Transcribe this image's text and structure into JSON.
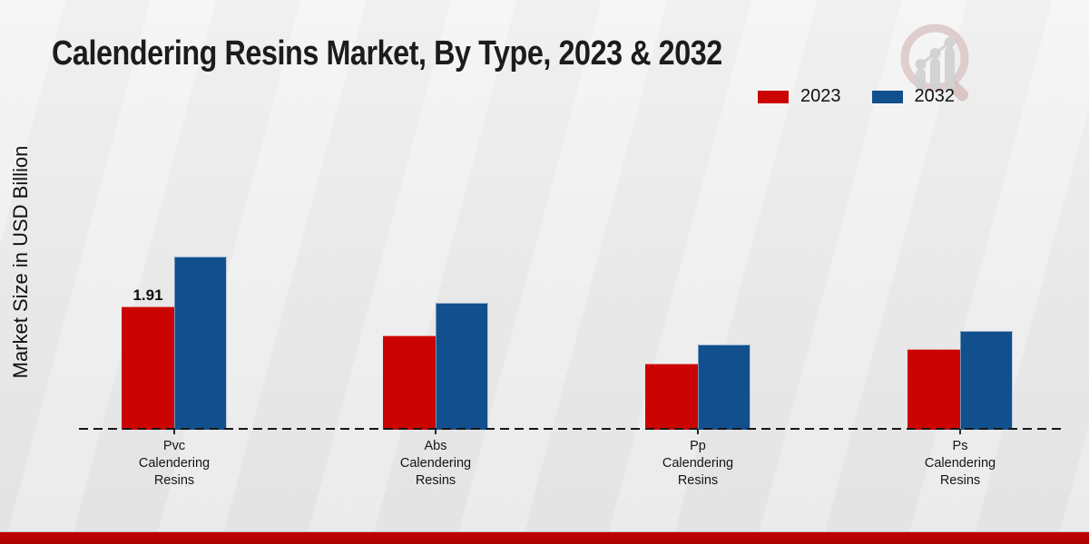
{
  "header": {
    "title": "Calendering Resins Market, By Type, 2023 & 2032"
  },
  "watermark": {
    "icon": "magnifier-bar-chart-logo"
  },
  "colors": {
    "series_2023": "#cb0303",
    "series_2032": "#11508d",
    "footer_band": "#b30404",
    "background": "#ececec",
    "text": "#1a1a1a"
  },
  "chart_data": {
    "type": "bar",
    "title": "Calendering Resins Market, By Type, 2023 & 2032",
    "xlabel": "",
    "ylabel": "Market Size in USD Billion",
    "categories": [
      "Pvc Calendering Resins",
      "Abs Calendering Resins",
      "Pp Calendering Resins",
      "Ps Calendering Resins"
    ],
    "category_label_lines": [
      [
        "Pvc",
        "Calendering",
        "Resins"
      ],
      [
        "Abs",
        "Calendering",
        "Resins"
      ],
      [
        "Pp",
        "Calendering",
        "Resins"
      ],
      [
        "Ps",
        "Calendering",
        "Resins"
      ]
    ],
    "series": [
      {
        "name": "2023",
        "color": "#cb0303",
        "values": [
          1.91,
          1.46,
          1.03,
          1.25
        ]
      },
      {
        "name": "2032",
        "color": "#11508d",
        "values": [
          2.68,
          1.97,
          1.32,
          1.53
        ]
      }
    ],
    "shown_value_labels": [
      {
        "series": "2023",
        "category": "Pvc Calendering Resins",
        "text": "1.91"
      }
    ],
    "legend": {
      "position": "top-right",
      "entries": [
        "2023",
        "2032"
      ]
    },
    "axes": {
      "ylim": [
        0,
        3
      ],
      "grid": false,
      "y_axis_visible": false,
      "baseline_style": "dashed-black"
    }
  }
}
